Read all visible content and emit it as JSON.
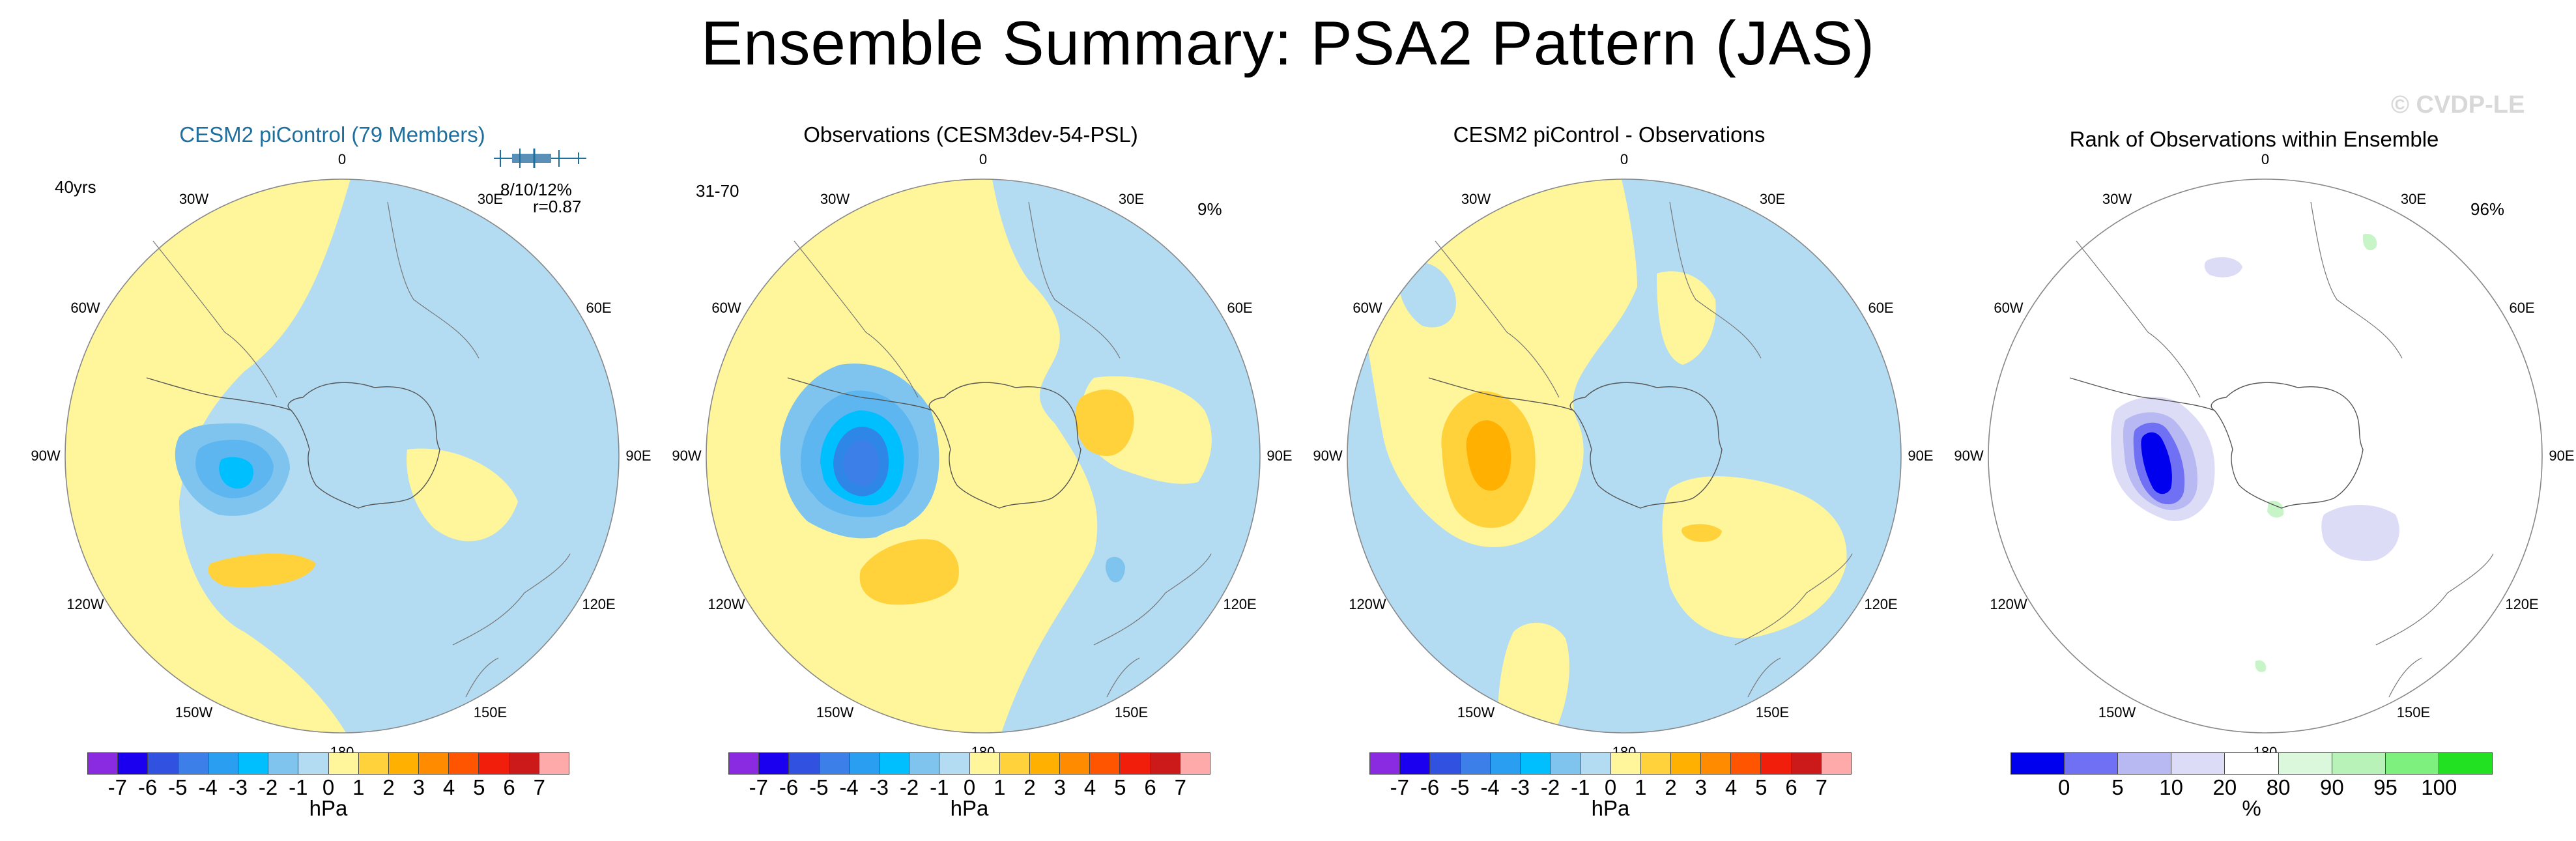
{
  "title": "Ensemble Summary: PSA2 Pattern (JAS)",
  "watermark": "© CVDP-LE",
  "colors": {
    "neg7": "#8a2be2",
    "neg6": "#1a00ee",
    "neg5": "#3152e0",
    "neg4": "#3d7fe8",
    "neg3": "#2a9ef0",
    "neg2": "#00bfff",
    "neg1": "#7ec4ee",
    "neg0": "#b3dcf2",
    "pos0": "#fff59a",
    "pos1": "#ffd23c",
    "pos2": "#ffb000",
    "pos3": "#ff8c00",
    "pos4": "#ff5500",
    "pos5": "#f01e0a",
    "pos6": "#cc1a1a",
    "pos7": "#ffaaaa",
    "title_blue": "#1f6f9e"
  },
  "longitude_labels": {
    "top": "0",
    "bottom": "180",
    "l30": "30W",
    "l60": "60W",
    "l90": "90W",
    "l120": "120W",
    "l150": "150W",
    "r30": "30E",
    "r60": "60E",
    "r90": "90E",
    "r120": "120E",
    "r150": "150E"
  },
  "panels": [
    {
      "title": "CESM2 piControl (79 Members)",
      "left_stat": "40yrs",
      "right_stat_1": "8/10/12%",
      "right_stat_2": "r=0.87",
      "colorbar_unit": "hPa"
    },
    {
      "title": "Observations (CESM3dev-54-PSL)",
      "left_stat": "31-70",
      "right_stat": "9%",
      "colorbar_unit": "hPa"
    },
    {
      "title": "CESM2 piControl - Observations",
      "colorbar_unit": "hPa"
    },
    {
      "title": "Rank of Observations within Ensemble",
      "right_stat": "96%",
      "colorbar_unit": "%"
    }
  ],
  "chart_data": [
    {
      "type": "heatmap",
      "title": "CESM2 piControl (79 Members)",
      "projection": "south polar stereographic",
      "units": "hPa",
      "levels": [
        -7,
        -6,
        -5,
        -4,
        -3,
        -2,
        -1,
        0,
        1,
        2,
        3,
        4,
        5,
        6,
        7
      ],
      "tick_labels": [
        "-7",
        "-6",
        "-5",
        "-4",
        "-3",
        "-2",
        "-1",
        "0",
        "1",
        "2",
        "3",
        "4",
        "5",
        "6",
        "7"
      ],
      "features": [
        {
          "region": "Amundsen/Bellingshausen Sea (~90W, 60S)",
          "value": -2
        },
        {
          "region": "South Pacific (~150W)",
          "value": 1
        },
        {
          "region": "Indian Ocean & eastern sector",
          "value": -0.5
        },
        {
          "region": "Western hemisphere mid-latitudes",
          "value": 0.5
        }
      ]
    },
    {
      "type": "heatmap",
      "title": "Observations (CESM3dev-54-PSL)",
      "projection": "south polar stereographic",
      "units": "hPa",
      "levels": [
        -7,
        -6,
        -5,
        -4,
        -3,
        -2,
        -1,
        0,
        1,
        2,
        3,
        4,
        5,
        6,
        7
      ],
      "tick_labels": [
        "-7",
        "-6",
        "-5",
        "-4",
        "-3",
        "-2",
        "-1",
        "0",
        "1",
        "2",
        "3",
        "4",
        "5",
        "6",
        "7"
      ],
      "features": [
        {
          "region": "Amundsen/Bellingshausen Sea (~80W)",
          "value": -3
        },
        {
          "region": "South Pacific (~130W)",
          "value": 1
        },
        {
          "region": "East Antarctica coast (~60E)",
          "value": 1
        },
        {
          "region": "South of Australia (~150E)",
          "value": -1
        }
      ]
    },
    {
      "type": "heatmap",
      "title": "CESM2 piControl - Observations",
      "projection": "south polar stereographic",
      "units": "hPa",
      "levels": [
        -7,
        -6,
        -5,
        -4,
        -3,
        -2,
        -1,
        0,
        1,
        2,
        3,
        4,
        5,
        6,
        7
      ],
      "tick_labels": [
        "-7",
        "-6",
        "-5",
        "-4",
        "-3",
        "-2",
        "-1",
        "0",
        "1",
        "2",
        "3",
        "4",
        "5",
        "6",
        "7"
      ],
      "features": [
        {
          "region": "Amundsen Sea (~90W)",
          "value": 2
        },
        {
          "region": "Indian Ocean sector (~120E)",
          "value": 0.5
        },
        {
          "region": "South Pacific & Atlantic",
          "value": -0.5
        }
      ]
    },
    {
      "type": "heatmap",
      "title": "Rank of Observations within Ensemble",
      "projection": "south polar stereographic",
      "units": "%",
      "levels": [
        0,
        5,
        10,
        20,
        80,
        90,
        95,
        100
      ],
      "tick_labels": [
        "0",
        "5",
        "10",
        "20",
        "80",
        "90",
        "95",
        "100"
      ],
      "features": [
        {
          "region": "Bellingshausen Sea (~80W)",
          "value": 3
        },
        {
          "region": "Weddell Sea / Antarctic Peninsula",
          "value": 8
        },
        {
          "region": "Indian Ocean sector (~110E)",
          "value": 15
        },
        {
          "region": "Scattered patches",
          "value": 85
        }
      ]
    }
  ]
}
